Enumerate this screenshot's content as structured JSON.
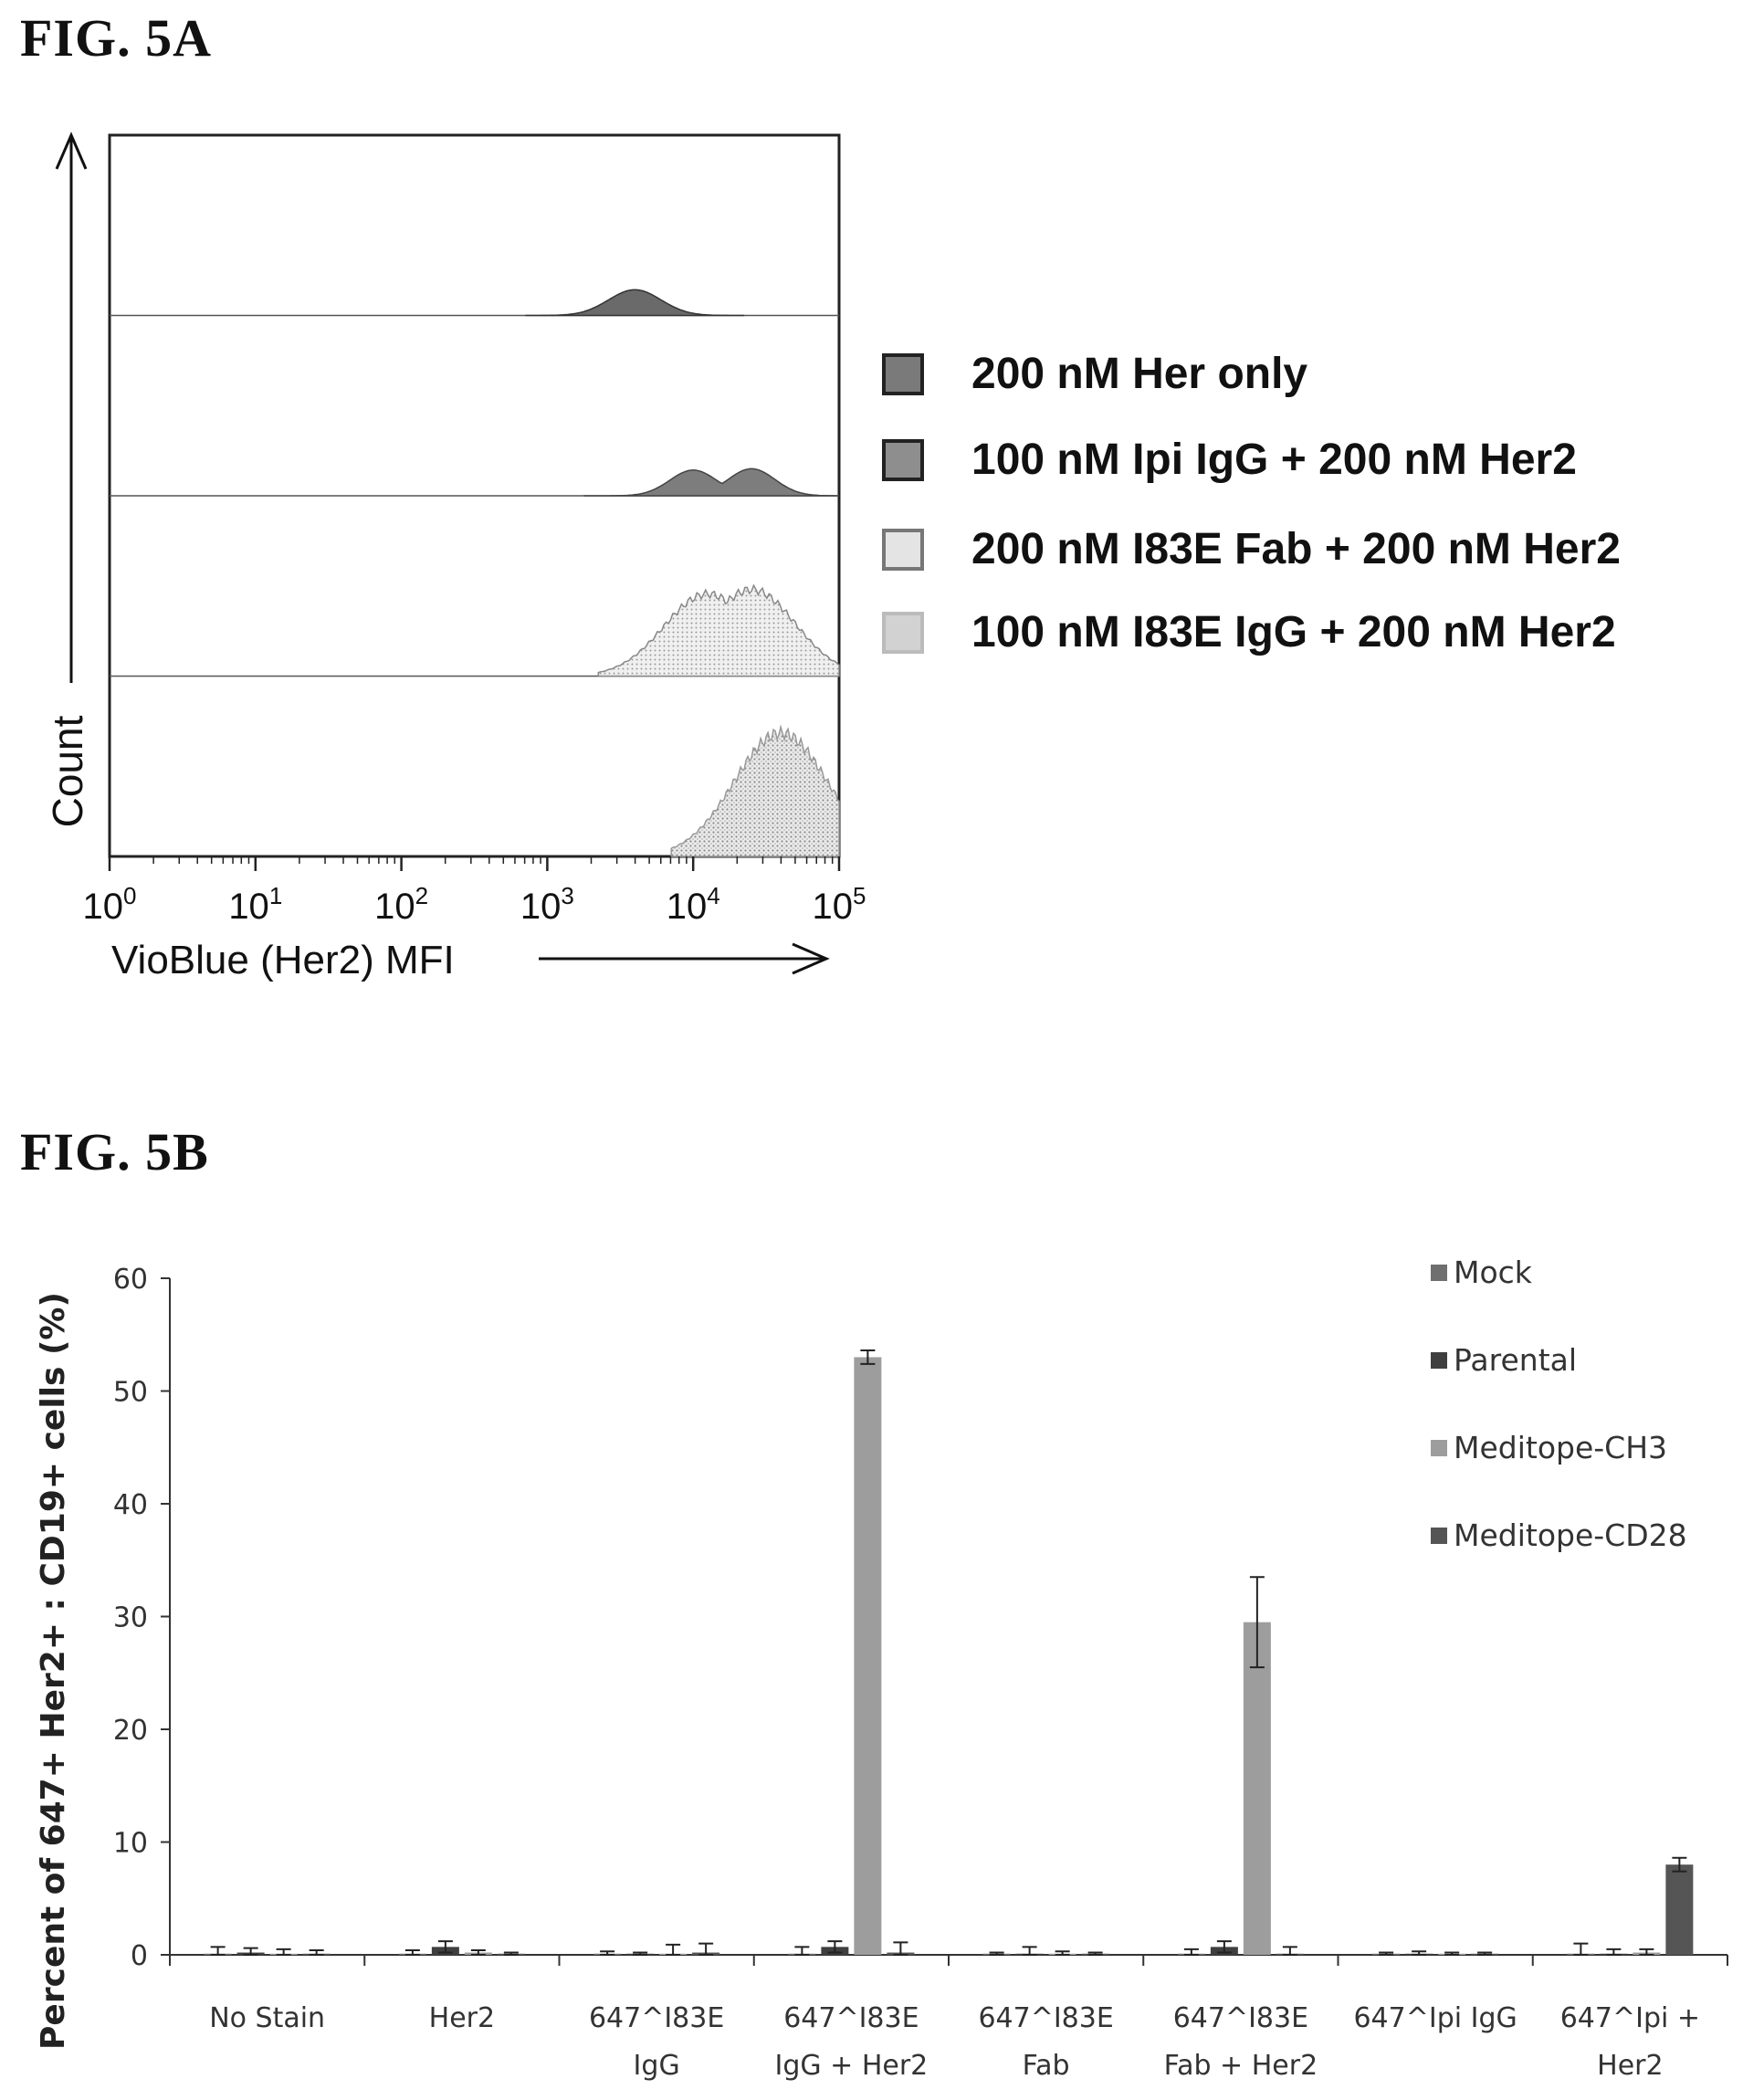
{
  "figure_a": {
    "label": "FIG. 5A",
    "y_axis_label": "Count",
    "x_axis_label": "VioBlue (Her2) MFI",
    "x_ticks": [
      {
        "base": "10",
        "exp": "0"
      },
      {
        "base": "10",
        "exp": "1"
      },
      {
        "base": "10",
        "exp": "2"
      },
      {
        "base": "10",
        "exp": "3"
      },
      {
        "base": "10",
        "exp": "4"
      },
      {
        "base": "10",
        "exp": "5"
      }
    ],
    "legend": [
      {
        "label": "200 nM Her only",
        "color": "#7a7a7a"
      },
      {
        "label": "100 nM Ipi IgG + 200 nM Her2",
        "color": "#8e8e8e"
      },
      {
        "label": "200 nM I83E Fab + 200 nM Her2",
        "color": "#e4e4e4"
      },
      {
        "label": "100 nM I83E IgG + 200 nM Her2",
        "color": "#d2d2d2"
      }
    ]
  },
  "figure_b": {
    "label": "FIG. 5B",
    "legend": [
      {
        "label": "Mock",
        "color": "#6f6f6f"
      },
      {
        "label": "Parental",
        "color": "#3f3f3f"
      },
      {
        "label": "Meditope-CH3",
        "color": "#9d9d9d"
      },
      {
        "label": "Meditope-CD28",
        "color": "#555555"
      }
    ]
  },
  "chart_data": [
    {
      "type": "area",
      "title": "FIG. 5A",
      "xlabel": "VioBlue (Her2) MFI",
      "ylabel": "Count",
      "x_scale": "log",
      "xlim": [
        1,
        100000
      ],
      "series": [
        {
          "name": "200 nM Her only",
          "peaks_log10": [
            3.6
          ],
          "relative_height": 0.15
        },
        {
          "name": "100 nM Ipi IgG + 200 nM Her2",
          "peaks_log10": [
            4.0,
            4.4
          ],
          "relative_height": 0.15
        },
        {
          "name": "200 nM I83E Fab + 200 nM Her2",
          "peaks_log10": [
            4.1,
            4.4
          ],
          "relative_height": 0.48
        },
        {
          "name": "100 nM I83E IgG + 200 nM Her2",
          "peaks_log10": [
            4.6
          ],
          "relative_height": 0.72
        }
      ]
    },
    {
      "type": "bar",
      "title": "FIG. 5B",
      "ylabel": "Percent of 647+ Her2+ : CD19+ cells (%)",
      "ylim": [
        0,
        60
      ],
      "y_ticks": [
        "0",
        "10",
        "20",
        "30",
        "40",
        "50",
        "60"
      ],
      "categories": [
        [
          "No Stain"
        ],
        [
          "Her2"
        ],
        [
          "647^I83E",
          "IgG"
        ],
        [
          "647^I83E",
          "IgG + Her2"
        ],
        [
          "647^I83E",
          "Fab"
        ],
        [
          "647^I83E",
          "Fab + Her2"
        ],
        [
          "647^Ipi IgG"
        ],
        [
          "647^Ipi +",
          "Her2"
        ]
      ],
      "series": [
        {
          "name": "Mock",
          "values": [
            0.1,
            0.1,
            0.1,
            0.1,
            0.1,
            0.1,
            0.1,
            0.1
          ],
          "errors": [
            0.6,
            0.3,
            0.2,
            0.6,
            0.1,
            0.4,
            0.1,
            0.9
          ]
        },
        {
          "name": "Parental",
          "values": [
            0.2,
            0.7,
            0.1,
            0.7,
            0.1,
            0.7,
            0.1,
            0.1
          ],
          "errors": [
            0.4,
            0.5,
            0.1,
            0.5,
            0.6,
            0.5,
            0.2,
            0.4
          ]
        },
        {
          "name": "Meditope-CH3",
          "values": [
            0.1,
            0.2,
            0.1,
            53.0,
            0.1,
            29.5,
            0.1,
            0.2
          ],
          "errors": [
            0.4,
            0.2,
            0.8,
            0.6,
            0.2,
            4.0,
            0.1,
            0.3
          ]
        },
        {
          "name": "Meditope-CD28",
          "values": [
            0.1,
            0.1,
            0.2,
            0.2,
            0.1,
            0.1,
            0.1,
            8.0
          ],
          "errors": [
            0.3,
            0.1,
            0.8,
            0.9,
            0.1,
            0.6,
            0.1,
            0.6
          ]
        }
      ]
    }
  ]
}
